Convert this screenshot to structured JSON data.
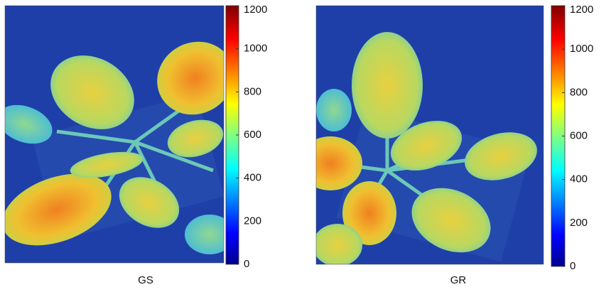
{
  "panels": [
    {
      "label": "GS",
      "colorbar": {
        "lim": [
          0,
          1200
        ],
        "ticks": [
          0,
          200,
          400,
          600,
          800,
          1000,
          1200
        ]
      }
    },
    {
      "label": "GR",
      "colorbar": {
        "lim": [
          0,
          1200
        ],
        "ticks": [
          0,
          200,
          400,
          600,
          800,
          1000,
          1200
        ]
      }
    }
  ]
}
